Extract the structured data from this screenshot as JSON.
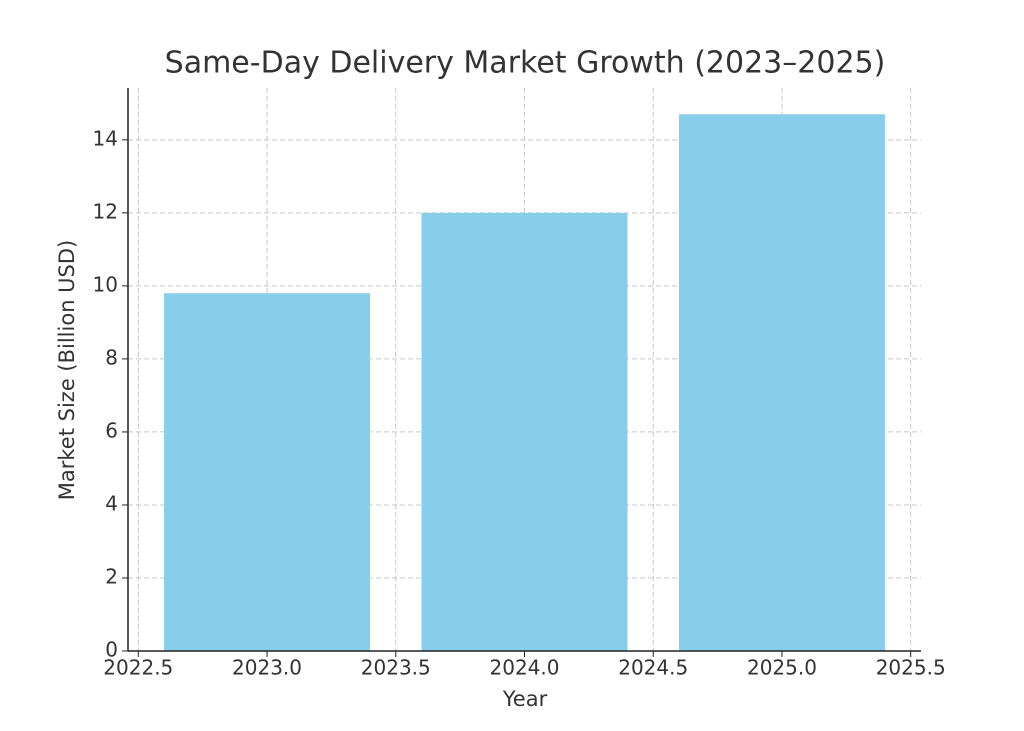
{
  "chart_data": {
    "type": "bar",
    "title": "Same-Day Delivery Market Growth (2023–2025)",
    "x_label": "Year",
    "y_label": "Market Size (Billion USD)",
    "x": [
      2023,
      2024,
      2025
    ],
    "values": [
      9.8,
      12.0,
      14.7
    ],
    "color": "#87ceeb",
    "bar_width": 0.8,
    "xlim": [
      2022.46,
      2025.54
    ],
    "xticks": [
      2022.5,
      {
        "value": 2023,
        "label": "2023.0"
      },
      2023.5,
      {
        "value": 2024,
        "label": "2024.0"
      },
      2024.5,
      {
        "value": 2025,
        "label": "2025.0"
      },
      2025.5
    ],
    "ylim": [
      0,
      15.42
    ],
    "yticks": [
      0,
      2,
      4,
      6,
      8,
      10,
      12,
      14
    ],
    "grid": true
  }
}
